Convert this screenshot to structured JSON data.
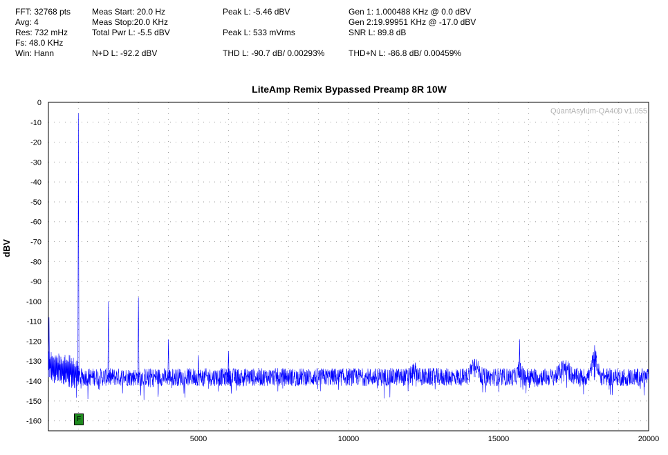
{
  "stats": {
    "fft": "FFT: 32768 pts",
    "avg": "Avg: 4",
    "res": "Res: 732 mHz",
    "fs": "Fs: 48.0 KHz",
    "win": "Win: Hann",
    "meas_start": "Meas Start: 20.0 Hz",
    "meas_stop": "Meas Stop:20.0 KHz",
    "total_pwr": "Total Pwr L: -5.5 dBV",
    "nd": "N+D L: -92.2 dBV",
    "peak_dbv": "Peak L: -5.46 dBV",
    "peak_mv": "Peak L: 533 mVrms",
    "thd": "THD L: -90.7 dB/ 0.00293%",
    "gen1": "Gen 1: 1.000488 KHz @ 0.0  dBV",
    "gen2": "Gen 2:19.99951 KHz @ -17.0  dBV",
    "snr": "SNR L: 89.8 dB",
    "thdn": "THD+N L: -86.8 dB/ 0.00459%"
  },
  "watermark": "QuantAsylum-QA400 v1.055",
  "marker_label": "F",
  "chart_data": {
    "type": "line",
    "title": "LiteAmp Remix Bypassed Preamp 8R 10W",
    "xlabel": "",
    "ylabel": "dBV",
    "xlim": [
      0,
      20000
    ],
    "ylim": [
      -165,
      0
    ],
    "x_ticks": [
      5000,
      10000,
      15000,
      20000
    ],
    "x_tick_labels": [
      "5000",
      "10000",
      "15000",
      "20000"
    ],
    "y_ticks": [
      0,
      -10,
      -20,
      -30,
      -40,
      -50,
      -60,
      -70,
      -80,
      -90,
      -100,
      -110,
      -120,
      -130,
      -140,
      -150,
      -160
    ],
    "y_tick_labels": [
      "0",
      "-10",
      "-20",
      "-30",
      "-40",
      "-50",
      "-60",
      "-70",
      "-80",
      "-90",
      "-100",
      "-110",
      "-120",
      "-130",
      "-140",
      "-150",
      "-160"
    ],
    "grid": true,
    "color": "#0000ff",
    "noise_floor_dbv": -138,
    "peaks": [
      {
        "x": 20,
        "y": -108
      },
      {
        "x": 1000,
        "y": -5.5
      },
      {
        "x": 2000,
        "y": -100
      },
      {
        "x": 3000,
        "y": -98
      },
      {
        "x": 4000,
        "y": -119
      },
      {
        "x": 5000,
        "y": -127
      },
      {
        "x": 6000,
        "y": -125
      },
      {
        "x": 14200,
        "y": -130
      },
      {
        "x": 15700,
        "y": -119
      },
      {
        "x": 18200,
        "y": -122
      }
    ]
  }
}
